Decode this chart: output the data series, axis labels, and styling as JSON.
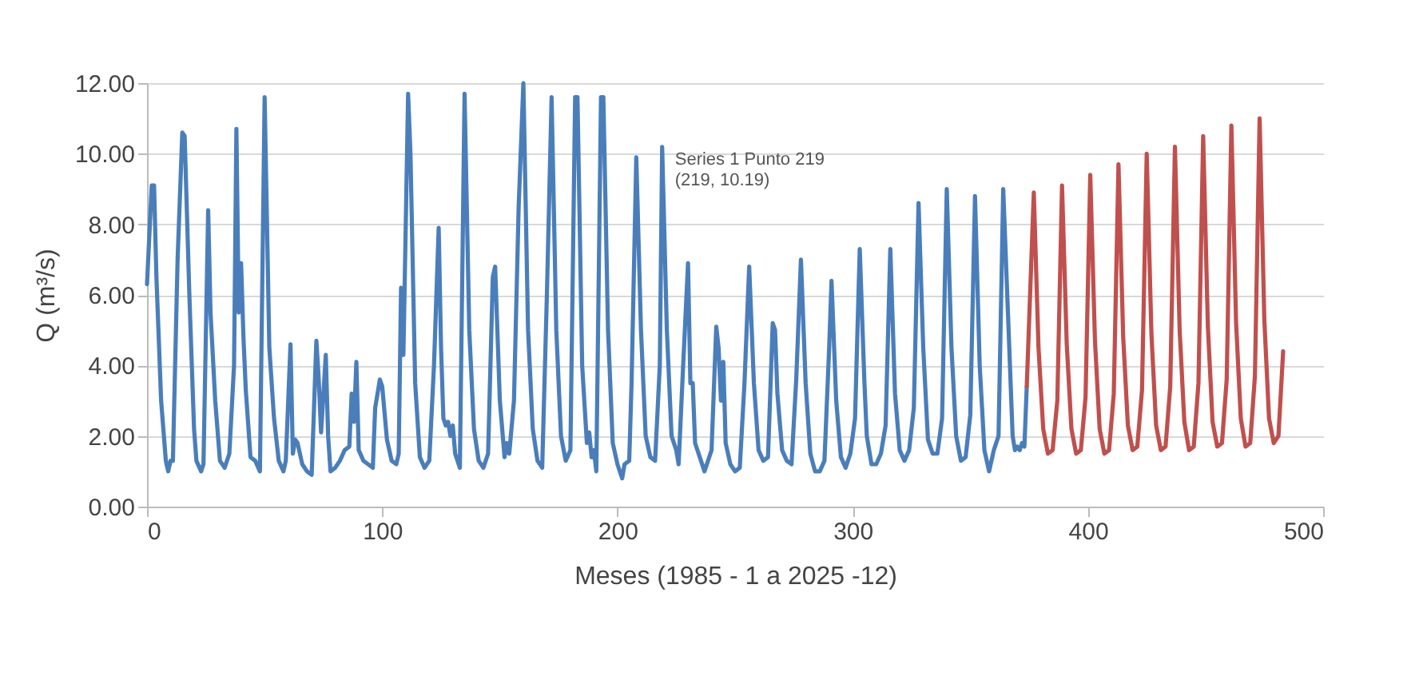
{
  "chart_data": {
    "type": "line",
    "xlabel": "Meses (1985 - 1 a 2025 -12)",
    "ylabel": "Q (m³/s)",
    "xlim": [
      0,
      500
    ],
    "xticks": [
      0,
      100,
      200,
      300,
      400,
      500
    ],
    "ylim": [
      0,
      12
    ],
    "yticks": [
      {
        "value": 0,
        "label": "0.00"
      },
      {
        "value": 2,
        "label": "2.00"
      },
      {
        "value": 4,
        "label": "4.00"
      },
      {
        "value": 6,
        "label": "6.00"
      },
      {
        "value": 8,
        "label": "8.00"
      },
      {
        "value": 10,
        "label": "10.00"
      },
      {
        "value": 12,
        "label": "12.00"
      }
    ],
    "grid": "y",
    "series": [
      {
        "color": "#4a7ebb",
        "x": [
          0,
          2,
          3,
          4,
          6,
          8,
          9,
          10,
          11,
          13,
          15,
          16,
          18,
          20,
          21,
          23,
          24,
          26,
          27,
          29,
          31,
          33,
          35,
          37,
          38,
          39,
          40,
          41,
          42,
          44,
          46,
          48,
          50,
          52,
          54,
          56,
          58,
          59,
          61,
          62,
          63,
          64,
          66,
          68,
          70,
          72,
          73,
          74,
          76,
          77,
          78,
          80,
          82,
          84,
          86,
          87,
          88,
          89,
          90,
          92,
          94,
          96,
          97,
          99,
          100,
          102,
          104,
          106,
          107,
          108,
          109,
          111,
          112,
          114,
          116,
          118,
          120,
          122,
          124,
          125,
          126,
          127,
          128,
          129,
          130,
          131,
          133,
          135,
          137,
          139,
          141,
          143,
          145,
          147,
          148,
          150,
          152,
          153,
          154,
          156,
          158,
          160,
          162,
          164,
          166,
          168,
          170,
          172,
          174,
          176,
          178,
          180,
          182,
          183,
          185,
          187,
          188,
          189,
          190,
          191,
          193,
          194,
          196,
          198,
          200,
          202,
          203,
          205,
          206,
          208,
          210,
          212,
          214,
          216,
          218,
          219,
          221,
          223,
          225,
          226,
          228,
          230,
          231,
          232,
          233,
          235,
          237,
          240,
          242,
          243,
          244,
          245,
          246,
          248,
          250,
          252,
          254,
          256,
          258,
          260,
          262,
          264,
          266,
          267,
          268,
          270,
          272,
          274,
          276,
          278,
          280,
          282,
          284,
          286,
          288,
          290,
          291,
          293,
          295,
          297,
          299,
          301,
          303,
          305,
          306,
          308,
          310,
          312,
          314,
          316,
          318,
          320,
          322,
          324,
          326,
          328,
          330,
          332,
          334,
          336,
          338,
          340,
          342,
          344,
          346,
          348,
          350,
          352,
          354,
          356,
          358,
          360,
          362,
          364,
          366,
          368,
          369,
          370,
          371,
          372,
          373,
          374
        ],
        "values": [
          6.3,
          9.1,
          9.1,
          6.5,
          3,
          1.3,
          1.0,
          1.3,
          1.3,
          7,
          10.6,
          10.5,
          6,
          2.2,
          1.3,
          1.0,
          1.2,
          8.4,
          5.5,
          3,
          1.3,
          1.1,
          1.5,
          4,
          10.7,
          5.5,
          6.9,
          4.8,
          3.3,
          1.4,
          1.3,
          1.0,
          11.6,
          4.5,
          2.5,
          1.3,
          1.0,
          1.3,
          4.6,
          1.5,
          1.9,
          1.8,
          1.2,
          1.0,
          0.9,
          4.7,
          3.6,
          2.1,
          4.3,
          2.0,
          1.0,
          1.1,
          1.3,
          1.6,
          1.7,
          3.2,
          2.4,
          4.1,
          1.6,
          1.3,
          1.2,
          1.1,
          2.8,
          3.6,
          3.4,
          1.9,
          1.3,
          1.2,
          1.5,
          6.2,
          4.3,
          11.7,
          10,
          3.5,
          1.4,
          1.1,
          1.3,
          4,
          7.9,
          4.5,
          2.5,
          2.3,
          2.4,
          2.0,
          2.3,
          1.5,
          1.1,
          11.7,
          5,
          2.2,
          1.3,
          1.1,
          1.5,
          6.5,
          6.8,
          3,
          1.4,
          1.8,
          1.5,
          3,
          8.5,
          12.0,
          5,
          2.2,
          1.3,
          1.1,
          6,
          11.6,
          5,
          2,
          1.3,
          1.6,
          11.6,
          11.6,
          4,
          1.8,
          2.1,
          1.4,
          1.6,
          1.0,
          11.6,
          11.6,
          5,
          1.8,
          1.2,
          0.8,
          1.2,
          1.3,
          3.5,
          9.9,
          5,
          2,
          1.4,
          1.3,
          4,
          10.19,
          5,
          2.0,
          1.6,
          1.2,
          4.1,
          6.9,
          3.5,
          3.5,
          1.8,
          1.4,
          1.0,
          1.6,
          5.1,
          4.5,
          3.0,
          4.1,
          1.8,
          1.2,
          1.0,
          1.1,
          3.5,
          6.8,
          3.5,
          1.6,
          1.3,
          1.4,
          5.2,
          5.0,
          3.2,
          1.6,
          1.3,
          1.2,
          3.6,
          7.0,
          3.5,
          1.5,
          1.0,
          1.0,
          1.3,
          4.5,
          6.4,
          3,
          1.4,
          1.1,
          1.5,
          2.5,
          7.3,
          3.5,
          2.0,
          1.2,
          1.2,
          1.5,
          2.3,
          7.3,
          3.2,
          1.6,
          1.3,
          1.6,
          2.8,
          8.6,
          4.5,
          1.9,
          1.5,
          1.5,
          2.5,
          9.0,
          4.5,
          2.0,
          1.3,
          1.4,
          2.6,
          8.8,
          4,
          1.6,
          1.0,
          1.6,
          2.0,
          9.0,
          5.5,
          2.0,
          1.6,
          1.7,
          1.6,
          1.8,
          1.7,
          3.4
        ]
      },
      {
        "color": "#c0504d",
        "x": [
          374,
          377,
          379,
          381,
          383,
          385,
          387,
          389,
          391,
          393,
          395,
          397,
          399,
          401,
          403,
          405,
          407,
          409,
          411,
          413,
          415,
          417,
          419,
          421,
          423,
          425,
          427,
          429,
          431,
          433,
          435,
          437,
          439,
          441,
          443,
          445,
          447,
          449,
          451,
          453,
          455,
          457,
          459,
          461,
          463,
          465,
          467,
          469,
          471,
          473,
          475,
          477,
          479,
          481,
          483
        ],
        "values": [
          3.4,
          8.9,
          4.5,
          2.2,
          1.5,
          1.6,
          3.0,
          9.1,
          4.6,
          2.2,
          1.5,
          1.6,
          3.1,
          9.4,
          4.7,
          2.2,
          1.5,
          1.6,
          3.2,
          9.7,
          4.8,
          2.3,
          1.6,
          1.7,
          3.3,
          10.0,
          4.9,
          2.3,
          1.6,
          1.7,
          3.4,
          10.2,
          5.0,
          2.4,
          1.6,
          1.7,
          3.5,
          10.5,
          5.1,
          2.4,
          1.7,
          1.8,
          3.6,
          10.8,
          5.2,
          2.5,
          1.7,
          1.8,
          3.7,
          11.0,
          5.3,
          2.5,
          1.8,
          2.0,
          4.4
        ]
      }
    ],
    "annotations": [
      {
        "text": "Series 1 Punto 219\n(219, 10.19)",
        "x": 219,
        "y": 10.19
      }
    ]
  }
}
